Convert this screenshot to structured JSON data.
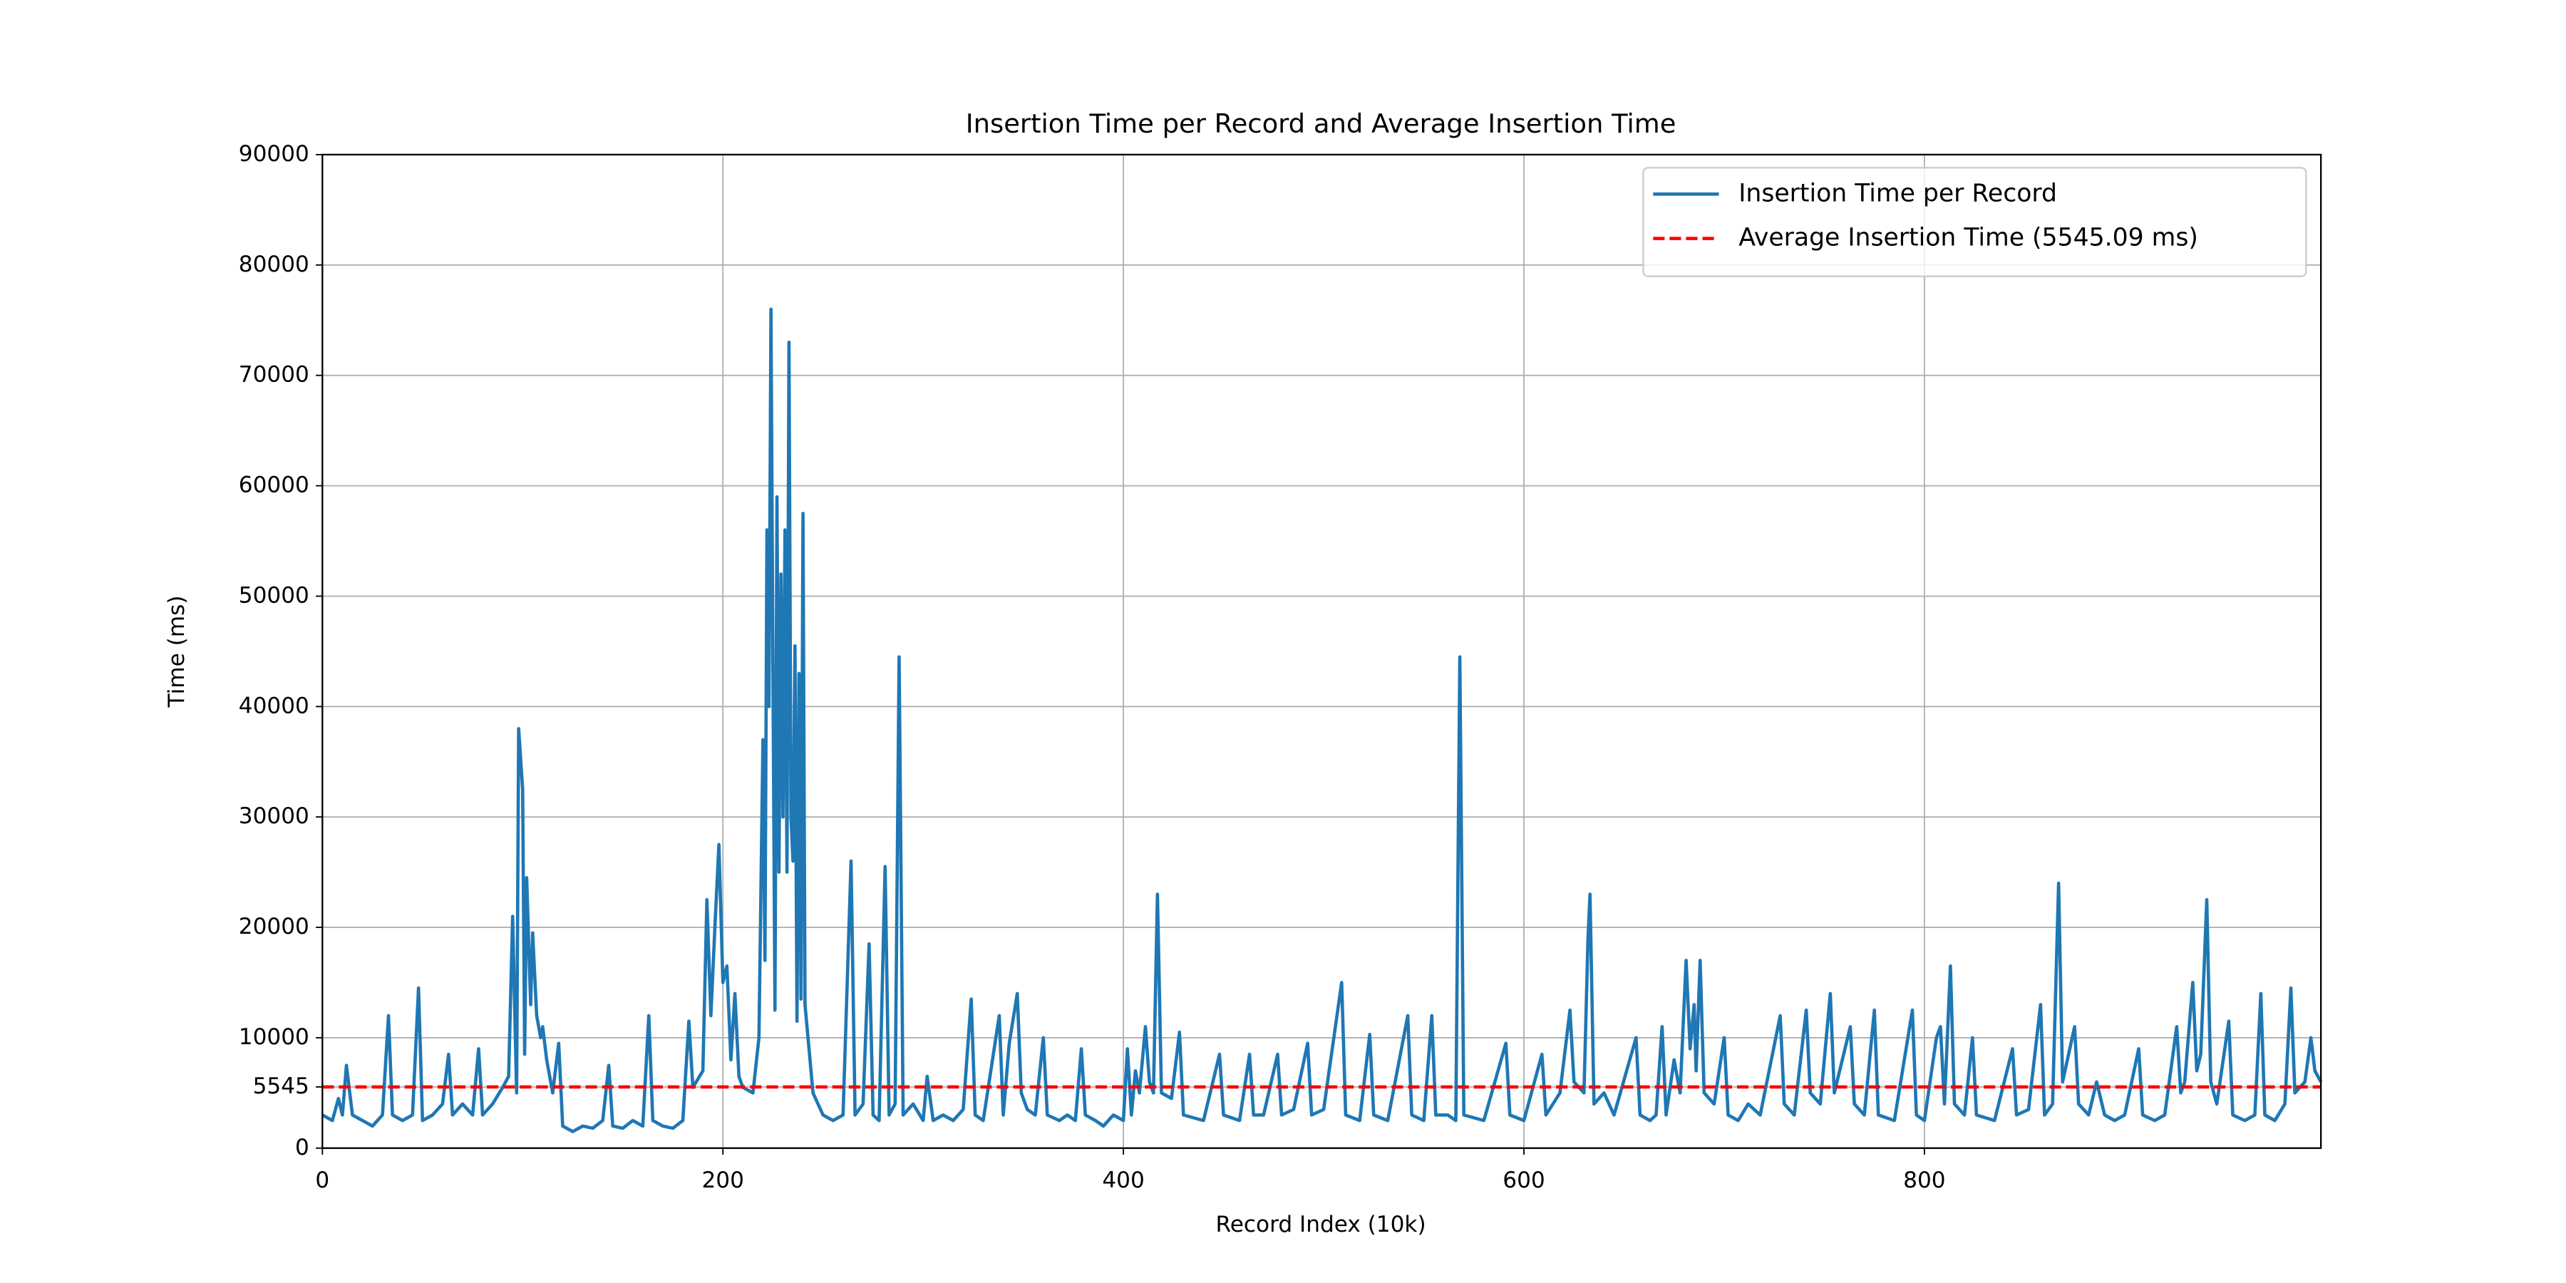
{
  "chart_data": {
    "type": "line",
    "title": "Insertion Time per Record and Average Insertion Time",
    "x_label": "Record Index (10k)",
    "y_label": "Time (ms)",
    "xlim": [
      0,
      998
    ],
    "ylim": [
      0,
      90000
    ],
    "xticks": [
      0,
      200,
      400,
      600,
      800
    ],
    "yticks": [
      0,
      5545,
      10000,
      20000,
      30000,
      40000,
      50000,
      60000,
      70000,
      80000,
      90000
    ],
    "grid": true,
    "legend": "upper right",
    "x": [
      0,
      5,
      8,
      10,
      12,
      15,
      20,
      25,
      30,
      33,
      35,
      40,
      45,
      48,
      50,
      55,
      60,
      63,
      65,
      70,
      75,
      78,
      80,
      85,
      90,
      93,
      95,
      97,
      98,
      100,
      101,
      102,
      104,
      105,
      107,
      109,
      110,
      112,
      115,
      118,
      120,
      125,
      130,
      135,
      140,
      143,
      145,
      150,
      155,
      160,
      163,
      165,
      170,
      175,
      180,
      183,
      185,
      190,
      192,
      194,
      196,
      198,
      200,
      202,
      204,
      206,
      208,
      210,
      215,
      218,
      220,
      221,
      222,
      223,
      224,
      225,
      226,
      227,
      228,
      229,
      230,
      231,
      232,
      233,
      234,
      235,
      236,
      237,
      238,
      239,
      240,
      241,
      243,
      245,
      250,
      255,
      260,
      264,
      266,
      270,
      273,
      275,
      278,
      281,
      283,
      286,
      288,
      290,
      295,
      300,
      302,
      305,
      310,
      315,
      320,
      324,
      326,
      330,
      338,
      340,
      343,
      347,
      349,
      352,
      356,
      360,
      362,
      368,
      372,
      376,
      379,
      381,
      386,
      390,
      395,
      400,
      402,
      404,
      406,
      408,
      411,
      413,
      415,
      417,
      419,
      424,
      428,
      430,
      440,
      448,
      450,
      458,
      463,
      465,
      470,
      477,
      479,
      485,
      492,
      494,
      500,
      509,
      511,
      518,
      523,
      525,
      532,
      542,
      544,
      550,
      554,
      556,
      562,
      566,
      568,
      570,
      580,
      591,
      593,
      600,
      609,
      611,
      618,
      623,
      625,
      630,
      632,
      633,
      635,
      640,
      645,
      656,
      658,
      663,
      666,
      669,
      671,
      675,
      678,
      681,
      683,
      685,
      686,
      688,
      690,
      695,
      700,
      702,
      707,
      712,
      718,
      728,
      730,
      735,
      741,
      743,
      748,
      753,
      755,
      763,
      765,
      770,
      775,
      777,
      785,
      794,
      796,
      800,
      806,
      808,
      810,
      813,
      815,
      820,
      824,
      826,
      835,
      844,
      846,
      852,
      858,
      860,
      864,
      867,
      869,
      875,
      877,
      882,
      886,
      890,
      895,
      900,
      907,
      909,
      915,
      920,
      926,
      928,
      930,
      934,
      936,
      938,
      941,
      943,
      946,
      952,
      954,
      960,
      965,
      968,
      970,
      975,
      980,
      983,
      985,
      990,
      993,
      995,
      998
    ],
    "series": [
      {
        "name": "Insertion Time per Record",
        "color": "#1f77b4",
        "values": [
          3000,
          2500,
          4500,
          3000,
          7500,
          3000,
          2500,
          2000,
          3000,
          12000,
          3000,
          2500,
          3000,
          14500,
          2500,
          3000,
          4000,
          8500,
          3000,
          4000,
          3000,
          9000,
          3000,
          4000,
          5500,
          6500,
          21000,
          5000,
          38000,
          32500,
          8500,
          24500,
          13000,
          19500,
          12000,
          10000,
          11000,
          8000,
          5000,
          9500,
          2000,
          1500,
          2000,
          1800,
          2500,
          7500,
          2000,
          1800,
          2500,
          2000,
          12000,
          2500,
          2000,
          1800,
          2500,
          11500,
          5500,
          7000,
          22500,
          12000,
          20000,
          27500,
          15000,
          16500,
          8000,
          14000,
          6500,
          5500,
          5000,
          10000,
          37000,
          17000,
          56000,
          40000,
          76000,
          43000,
          12500,
          59000,
          25000,
          52000,
          30000,
          56000,
          25000,
          73000,
          30000,
          26000,
          45500,
          11500,
          43000,
          13500,
          57500,
          13000,
          9000,
          5000,
          3000,
          2500,
          3000,
          26000,
          3000,
          4000,
          18500,
          3000,
          2500,
          25500,
          3000,
          4000,
          44500,
          3000,
          4000,
          2500,
          6500,
          2500,
          3000,
          2500,
          3500,
          13500,
          3000,
          2500,
          12000,
          3000,
          9500,
          14000,
          5000,
          3500,
          3000,
          10000,
          3000,
          2500,
          3000,
          2500,
          9000,
          3000,
          2500,
          2000,
          3000,
          2500,
          9000,
          3000,
          7000,
          5000,
          11000,
          6000,
          5000,
          23000,
          5000,
          4500,
          10500,
          3000,
          2500,
          8500,
          3000,
          2500,
          8500,
          3000,
          3000,
          8500,
          3000,
          3500,
          9500,
          3000,
          3500,
          15000,
          3000,
          2500,
          10300,
          3000,
          2500,
          12000,
          3000,
          2500,
          12000,
          3000,
          3000,
          2500,
          44500,
          3000,
          2500,
          9500,
          3000,
          2500,
          8500,
          3000,
          5000,
          12500,
          6000,
          5000,
          19000,
          23000,
          4000,
          5000,
          3000,
          10000,
          3000,
          2500,
          3000,
          11000,
          3000,
          8000,
          5000,
          17000,
          9000,
          13000,
          7000,
          17000,
          5000,
          4000,
          10000,
          3000,
          2500,
          4000,
          3000,
          12000,
          4000,
          3000,
          12500,
          5000,
          4000,
          14000,
          5000,
          11000,
          4000,
          3000,
          12500,
          3000,
          2500,
          12500,
          3000,
          2500,
          10000,
          11000,
          4000,
          16500,
          4000,
          3000,
          10000,
          3000,
          2500,
          9000,
          3000,
          3500,
          13000,
          3000,
          4000,
          24000,
          6000,
          11000,
          4000,
          3000,
          6000,
          3000,
          2500,
          3000,
          9000,
          3000,
          2500,
          3000,
          11000,
          5000,
          6000,
          15000,
          7000,
          8500,
          22500,
          6000,
          4000,
          11500,
          3000,
          2500,
          3000,
          14000,
          3000,
          2500,
          4000,
          14500,
          5000,
          6000,
          10000,
          7000,
          6000
        ]
      }
    ],
    "average": {
      "name": "Average Insertion Time (5545.09 ms)",
      "color": "#ff0000",
      "value": 5545.09
    }
  }
}
